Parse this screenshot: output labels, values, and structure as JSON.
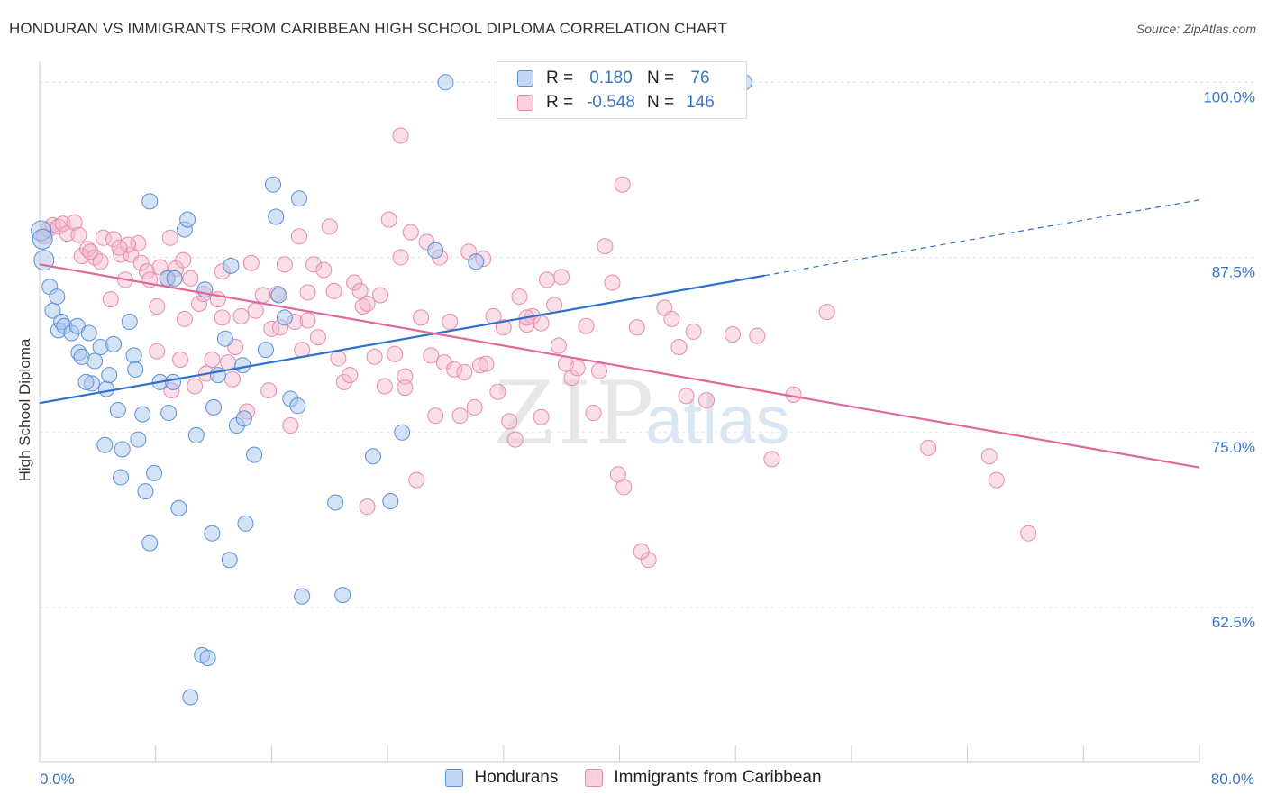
{
  "header": {
    "title": "HONDURAN VS IMMIGRANTS FROM CARIBBEAN HIGH SCHOOL DIPLOMA CORRELATION CHART",
    "source": "Source: ZipAtlas.com"
  },
  "watermark": {
    "zip": "ZIP",
    "atlas": "atlas"
  },
  "legend": {
    "rows": [
      {
        "r_label": "R =",
        "r_value": "0.180",
        "n_label": "N =",
        "n_value": "76"
      },
      {
        "r_label": "R =",
        "r_value": "-0.548",
        "n_label": "N =",
        "n_value": "146"
      }
    ]
  },
  "colors": {
    "blue_fill": "#a9c6ee",
    "blue_stroke": "#5b8fd6",
    "blue_line": "#2f6fcf",
    "pink_fill": "#f5b8cc",
    "pink_stroke": "#e88aa8",
    "pink_line": "#e2689a",
    "tick_label": "#3a75c4",
    "grid": "#e3e3e3"
  },
  "chart_data": {
    "type": "scatter",
    "title": "HONDURAN VS IMMIGRANTS FROM CARIBBEAN HIGH SCHOOL DIPLOMA CORRELATION CHART",
    "xlabel": "",
    "ylabel": "High School Diploma",
    "xlim": [
      0,
      80
    ],
    "ylim": [
      51.5,
      101.5
    ],
    "x_tick_labels": [
      "0.0%",
      "80.0%"
    ],
    "y_ticks": [
      62.5,
      75.0,
      87.5,
      100.0
    ],
    "y_tick_labels": [
      "62.5%",
      "75.0%",
      "87.5%",
      "100.0%"
    ],
    "grid": true,
    "legend_position": "bottom",
    "series": [
      {
        "name": "Hondurans",
        "r": 0.18,
        "n": 76,
        "trend": {
          "x0": 0,
          "y0": 77.1,
          "x1": 50,
          "y1": 86.2,
          "dash_x1": 80,
          "dash_y1": 91.6
        },
        "points": [
          [
            0.1,
            89.4
          ],
          [
            0.2,
            88.8
          ],
          [
            0.3,
            87.3
          ],
          [
            0.7,
            85.4
          ],
          [
            0.9,
            83.7
          ],
          [
            1.2,
            84.7
          ],
          [
            1.3,
            82.3
          ],
          [
            1.5,
            82.9
          ],
          [
            1.7,
            82.6
          ],
          [
            2.2,
            82.1
          ],
          [
            2.6,
            82.6
          ],
          [
            2.7,
            80.7
          ],
          [
            2.9,
            80.4
          ],
          [
            3.4,
            82.1
          ],
          [
            3.6,
            78.5
          ],
          [
            3.8,
            80.1
          ],
          [
            4.2,
            81.1
          ],
          [
            4.6,
            78.1
          ],
          [
            4.8,
            79.1
          ],
          [
            5.1,
            81.3
          ],
          [
            5.4,
            76.6
          ],
          [
            6.2,
            82.9
          ],
          [
            6.5,
            80.5
          ],
          [
            6.6,
            79.5
          ],
          [
            6.8,
            74.5
          ],
          [
            7.1,
            76.3
          ],
          [
            7.3,
            70.8
          ],
          [
            7.6,
            91.5
          ],
          [
            7.9,
            72.1
          ],
          [
            8.3,
            78.6
          ],
          [
            8.8,
            86.0
          ],
          [
            8.9,
            76.4
          ],
          [
            9.3,
            86.0
          ],
          [
            9.6,
            69.6
          ],
          [
            10.0,
            89.5
          ],
          [
            10.2,
            90.2
          ],
          [
            10.8,
            74.8
          ],
          [
            11.2,
            59.1
          ],
          [
            11.4,
            85.2
          ],
          [
            11.6,
            58.9
          ],
          [
            11.9,
            67.8
          ],
          [
            12.0,
            76.8
          ],
          [
            12.3,
            79.1
          ],
          [
            12.8,
            81.7
          ],
          [
            13.2,
            86.9
          ],
          [
            13.6,
            75.5
          ],
          [
            14.1,
            76.0
          ],
          [
            14.2,
            68.5
          ],
          [
            14.8,
            73.4
          ],
          [
            15.6,
            80.9
          ],
          [
            16.1,
            92.7
          ],
          [
            16.3,
            90.4
          ],
          [
            16.5,
            84.8
          ],
          [
            16.9,
            83.2
          ],
          [
            17.3,
            77.4
          ],
          [
            17.8,
            76.9
          ],
          [
            17.9,
            91.7
          ],
          [
            18.1,
            63.3
          ],
          [
            20.4,
            70.0
          ],
          [
            20.9,
            63.4
          ],
          [
            23.0,
            73.3
          ],
          [
            24.2,
            70.1
          ],
          [
            25.0,
            75.0
          ],
          [
            27.3,
            88.0
          ],
          [
            28.0,
            100.0
          ],
          [
            30.1,
            87.2
          ],
          [
            48.6,
            100.0
          ],
          [
            7.6,
            67.1
          ],
          [
            5.7,
            73.8
          ],
          [
            9.2,
            78.6
          ],
          [
            14.0,
            79.8
          ],
          [
            3.2,
            78.6
          ],
          [
            10.4,
            56.1
          ],
          [
            4.5,
            74.1
          ],
          [
            5.6,
            71.8
          ],
          [
            13.1,
            65.9
          ]
        ]
      },
      {
        "name": "Immigrants from Caribbean",
        "r": -0.548,
        "n": 146,
        "trend": {
          "x0": 0,
          "y0": 87.0,
          "x1": 80,
          "y1": 72.5
        },
        "points": [
          [
            0.3,
            89.0
          ],
          [
            0.6,
            89.5
          ],
          [
            0.9,
            89.8
          ],
          [
            1.3,
            89.7
          ],
          [
            1.6,
            89.9
          ],
          [
            1.9,
            89.2
          ],
          [
            2.4,
            90.0
          ],
          [
            2.7,
            89.1
          ],
          [
            2.9,
            87.6
          ],
          [
            3.3,
            88.1
          ],
          [
            3.8,
            87.5
          ],
          [
            4.2,
            87.2
          ],
          [
            4.4,
            88.9
          ],
          [
            4.9,
            84.5
          ],
          [
            5.1,
            88.8
          ],
          [
            5.6,
            87.7
          ],
          [
            5.9,
            85.9
          ],
          [
            6.3,
            87.7
          ],
          [
            6.8,
            88.5
          ],
          [
            7.0,
            87.1
          ],
          [
            7.4,
            86.5
          ],
          [
            7.6,
            85.9
          ],
          [
            8.1,
            84.0
          ],
          [
            8.3,
            86.8
          ],
          [
            8.8,
            86.0
          ],
          [
            9.0,
            88.9
          ],
          [
            9.4,
            86.7
          ],
          [
            9.7,
            80.2
          ],
          [
            9.9,
            87.3
          ],
          [
            10.0,
            83.1
          ],
          [
            10.4,
            86.0
          ],
          [
            10.7,
            78.3
          ],
          [
            11.0,
            84.2
          ],
          [
            11.5,
            79.2
          ],
          [
            11.9,
            80.2
          ],
          [
            12.3,
            84.5
          ],
          [
            12.6,
            86.5
          ],
          [
            13.0,
            80.0
          ],
          [
            13.3,
            78.8
          ],
          [
            13.5,
            81.1
          ],
          [
            13.9,
            83.3
          ],
          [
            14.3,
            76.5
          ],
          [
            14.6,
            87.1
          ],
          [
            14.9,
            83.7
          ],
          [
            15.4,
            84.8
          ],
          [
            15.8,
            78.0
          ],
          [
            16.0,
            82.4
          ],
          [
            16.4,
            84.9
          ],
          [
            16.9,
            87.0
          ],
          [
            17.3,
            75.5
          ],
          [
            17.6,
            82.9
          ],
          [
            17.9,
            89.0
          ],
          [
            18.1,
            80.9
          ],
          [
            18.5,
            85.0
          ],
          [
            18.9,
            87.0
          ],
          [
            19.2,
            81.8
          ],
          [
            19.6,
            86.6
          ],
          [
            20.0,
            89.7
          ],
          [
            20.3,
            85.1
          ],
          [
            20.6,
            80.3
          ],
          [
            21.0,
            78.6
          ],
          [
            21.4,
            79.1
          ],
          [
            21.7,
            85.7
          ],
          [
            22.1,
            85.1
          ],
          [
            22.3,
            84.0
          ],
          [
            22.6,
            84.2
          ],
          [
            23.1,
            80.4
          ],
          [
            23.5,
            84.8
          ],
          [
            23.8,
            78.3
          ],
          [
            24.1,
            90.2
          ],
          [
            24.5,
            80.6
          ],
          [
            24.9,
            87.5
          ],
          [
            25.2,
            79.0
          ],
          [
            25.6,
            89.3
          ],
          [
            26.0,
            71.6
          ],
          [
            26.3,
            83.2
          ],
          [
            26.7,
            88.6
          ],
          [
            27.0,
            80.5
          ],
          [
            27.3,
            76.2
          ],
          [
            27.6,
            87.5
          ],
          [
            27.9,
            80.0
          ],
          [
            28.3,
            82.9
          ],
          [
            28.6,
            79.5
          ],
          [
            29.0,
            76.2
          ],
          [
            29.3,
            79.3
          ],
          [
            29.6,
            87.9
          ],
          [
            30.0,
            76.8
          ],
          [
            30.4,
            79.8
          ],
          [
            30.8,
            79.9
          ],
          [
            31.3,
            83.3
          ],
          [
            31.6,
            77.9
          ],
          [
            32.0,
            82.5
          ],
          [
            32.4,
            75.8
          ],
          [
            32.8,
            74.5
          ],
          [
            33.1,
            84.7
          ],
          [
            33.6,
            82.7
          ],
          [
            34.0,
            83.3
          ],
          [
            34.6,
            76.1
          ],
          [
            35.0,
            85.9
          ],
          [
            35.5,
            84.1
          ],
          [
            35.8,
            81.2
          ],
          [
            36.3,
            79.9
          ],
          [
            36.7,
            78.9
          ],
          [
            37.1,
            79.6
          ],
          [
            37.7,
            82.6
          ],
          [
            38.2,
            76.4
          ],
          [
            38.6,
            79.4
          ],
          [
            39.0,
            88.3
          ],
          [
            39.5,
            85.7
          ],
          [
            39.9,
            72.0
          ],
          [
            40.3,
            71.1
          ],
          [
            41.2,
            82.5
          ],
          [
            42.0,
            65.9
          ],
          [
            43.1,
            83.9
          ],
          [
            43.6,
            83.1
          ],
          [
            44.1,
            81.1
          ],
          [
            44.6,
            77.6
          ],
          [
            45.1,
            82.2
          ],
          [
            46.0,
            77.3
          ],
          [
            47.8,
            82.0
          ],
          [
            49.5,
            81.9
          ],
          [
            50.5,
            73.1
          ],
          [
            52.0,
            77.7
          ],
          [
            54.3,
            83.6
          ],
          [
            61.3,
            73.9
          ],
          [
            65.5,
            73.3
          ],
          [
            66.0,
            71.6
          ],
          [
            68.2,
            67.8
          ],
          [
            41.5,
            66.5
          ],
          [
            40.2,
            92.7
          ],
          [
            24.9,
            96.2
          ],
          [
            22.6,
            69.7
          ],
          [
            16.6,
            82.5
          ],
          [
            18.5,
            83.0
          ],
          [
            9.1,
            78.0
          ],
          [
            6.1,
            88.4
          ],
          [
            11.3,
            84.9
          ],
          [
            30.6,
            87.4
          ],
          [
            36.0,
            86.1
          ],
          [
            25.2,
            78.2
          ],
          [
            33.6,
            83.2
          ],
          [
            34.6,
            82.8
          ],
          [
            12.6,
            83.2
          ],
          [
            8.1,
            80.8
          ],
          [
            5.5,
            88.2
          ],
          [
            3.5,
            87.9
          ]
        ]
      }
    ]
  }
}
